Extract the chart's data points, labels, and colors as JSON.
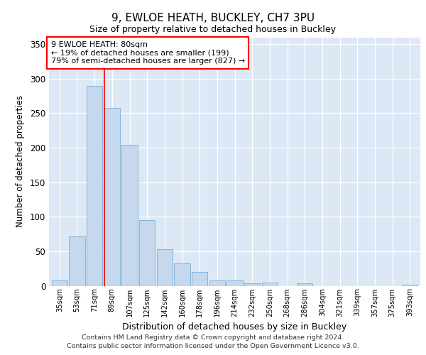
{
  "title1": "9, EWLOE HEATH, BUCKLEY, CH7 3PU",
  "title2": "Size of property relative to detached houses in Buckley",
  "xlabel": "Distribution of detached houses by size in Buckley",
  "ylabel": "Number of detached properties",
  "categories": [
    "35sqm",
    "53sqm",
    "71sqm",
    "89sqm",
    "107sqm",
    "125sqm",
    "142sqm",
    "160sqm",
    "178sqm",
    "196sqm",
    "214sqm",
    "232sqm",
    "250sqm",
    "268sqm",
    "286sqm",
    "304sqm",
    "321sqm",
    "339sqm",
    "357sqm",
    "375sqm",
    "393sqm"
  ],
  "values": [
    8,
    72,
    290,
    258,
    204,
    95,
    53,
    32,
    20,
    8,
    8,
    4,
    5,
    0,
    4,
    0,
    0,
    0,
    0,
    0,
    2
  ],
  "bar_color": "#c5d8ee",
  "bar_edge_color": "#7aadd4",
  "redline_index": 3,
  "annotation_text": "9 EWLOE HEATH: 80sqm\n← 19% of detached houses are smaller (199)\n79% of semi-detached houses are larger (827) →",
  "annotation_box_color": "white",
  "annotation_box_edge": "red",
  "ylim": [
    0,
    360
  ],
  "yticks": [
    0,
    50,
    100,
    150,
    200,
    250,
    300,
    350
  ],
  "footer1": "Contains HM Land Registry data © Crown copyright and database right 2024.",
  "footer2": "Contains public sector information licensed under the Open Government Licence v3.0.",
  "plot_bg_color": "#dce8f5"
}
